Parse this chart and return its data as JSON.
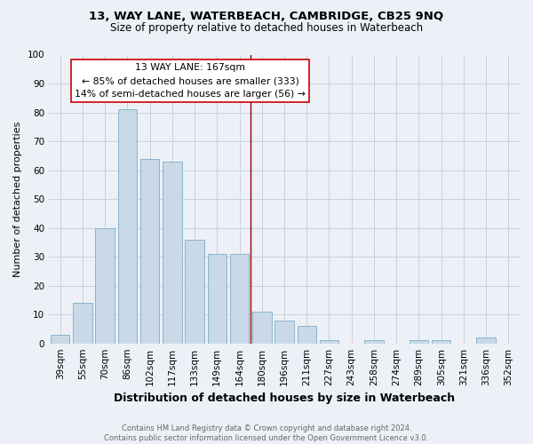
{
  "title": "13, WAY LANE, WATERBEACH, CAMBRIDGE, CB25 9NQ",
  "subtitle": "Size of property relative to detached houses in Waterbeach",
  "xlabel": "Distribution of detached houses by size in Waterbeach",
  "ylabel": "Number of detached properties",
  "footer1": "Contains HM Land Registry data © Crown copyright and database right 2024.",
  "footer2": "Contains public sector information licensed under the Open Government Licence v3.0.",
  "categories": [
    "39sqm",
    "55sqm",
    "70sqm",
    "86sqm",
    "102sqm",
    "117sqm",
    "133sqm",
    "149sqm",
    "164sqm",
    "180sqm",
    "196sqm",
    "211sqm",
    "227sqm",
    "243sqm",
    "258sqm",
    "274sqm",
    "289sqm",
    "305sqm",
    "321sqm",
    "336sqm",
    "352sqm"
  ],
  "values": [
    3,
    14,
    40,
    81,
    64,
    63,
    36,
    31,
    31,
    11,
    8,
    6,
    1,
    0,
    1,
    0,
    1,
    1,
    0,
    2,
    0
  ],
  "bar_color": "#c9d9e8",
  "bar_edge_color": "#8ab4cc",
  "vline_x_index": 8,
  "vline_color": "#990000",
  "annotation_text": "13 WAY LANE: 167sqm\n← 85% of detached houses are smaller (333)\n14% of semi-detached houses are larger (56) →",
  "annotation_box_color": "#ffffff",
  "annotation_box_edge": "#cc0000",
  "ylim": [
    0,
    100
  ],
  "yticks": [
    0,
    10,
    20,
    30,
    40,
    50,
    60,
    70,
    80,
    90,
    100
  ],
  "grid_color": "#c8d0dc",
  "background_color": "#edf1f7",
  "title_fontsize": 9.5,
  "subtitle_fontsize": 8.5,
  "xlabel_fontsize": 9,
  "ylabel_fontsize": 8,
  "tick_fontsize": 7.5,
  "annotation_fontsize": 7.8,
  "footer_fontsize": 6.0
}
